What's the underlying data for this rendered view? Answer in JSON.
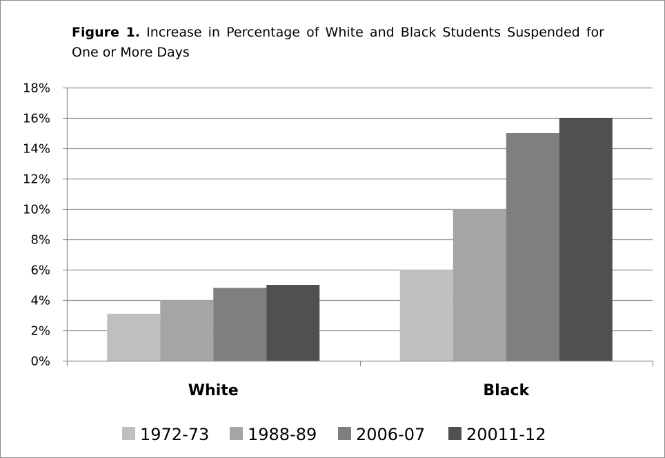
{
  "chart_data": {
    "type": "bar",
    "title_label": "Figure 1.",
    "title_text": "Increase in Percentage of White and Black Students Suspended for One or More Days",
    "categories": [
      "White",
      "Black"
    ],
    "series": [
      {
        "name": "1972-73",
        "values": [
          3.1,
          6.0
        ],
        "color": "#bfbfbf"
      },
      {
        "name": "1988-89",
        "values": [
          4.0,
          10.0
        ],
        "color": "#a5a5a5"
      },
      {
        "name": "2006-07",
        "values": [
          4.8,
          15.0
        ],
        "color": "#7f7f7f"
      },
      {
        "name": "20011-12",
        "values": [
          5.0,
          16.0
        ],
        "color": "#505050"
      }
    ],
    "ylim": [
      0,
      18
    ],
    "ytick_step": 2,
    "ytick_labels": [
      "0%",
      "2%",
      "4%",
      "6%",
      "8%",
      "10%",
      "12%",
      "14%",
      "16%",
      "18%"
    ],
    "grid": true,
    "legend_position": "bottom",
    "gridline_color": "#8c8c8c"
  }
}
